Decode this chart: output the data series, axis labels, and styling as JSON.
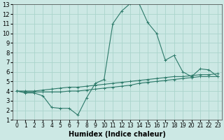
{
  "xlabel": "Humidex (Indice chaleur)",
  "background_color": "#cce8e4",
  "grid_color": "#aad4cc",
  "line_color": "#2d7a6a",
  "xlim": [
    -0.5,
    23.5
  ],
  "ylim": [
    1,
    13
  ],
  "xticks": [
    0,
    1,
    2,
    3,
    4,
    5,
    6,
    7,
    8,
    9,
    10,
    11,
    12,
    13,
    14,
    15,
    16,
    17,
    18,
    19,
    20,
    21,
    22,
    23
  ],
  "yticks": [
    1,
    2,
    3,
    4,
    5,
    6,
    7,
    8,
    9,
    10,
    11,
    12,
    13
  ],
  "series": [
    {
      "x": [
        0,
        1,
        2,
        3,
        4,
        5,
        6,
        7,
        8,
        9,
        10,
        11,
        12,
        13,
        14,
        15,
        16,
        17,
        18,
        19,
        20,
        21,
        22,
        23
      ],
      "y": [
        4.0,
        3.8,
        3.8,
        3.5,
        2.3,
        2.2,
        2.2,
        1.5,
        3.3,
        4.8,
        5.2,
        11.0,
        12.3,
        13.1,
        13.1,
        11.1,
        10.0,
        7.2,
        7.7,
        6.0,
        5.5,
        6.3,
        6.2,
        5.5
      ]
    },
    {
      "x": [
        0,
        1,
        2,
        3,
        4,
        5,
        6,
        7,
        8,
        9,
        10,
        11,
        12,
        13,
        14,
        15,
        16,
        17,
        18,
        19,
        20,
        21,
        22,
        23
      ],
      "y": [
        4.0,
        4.0,
        4.0,
        4.1,
        4.2,
        4.3,
        4.4,
        4.4,
        4.5,
        4.6,
        4.7,
        4.8,
        4.9,
        5.0,
        5.1,
        5.2,
        5.3,
        5.4,
        5.5,
        5.5,
        5.6,
        5.7,
        5.7,
        5.8
      ]
    },
    {
      "x": [
        0,
        1,
        2,
        3,
        4,
        5,
        6,
        7,
        8,
        9,
        10,
        11,
        12,
        13,
        14,
        15,
        16,
        17,
        18,
        19,
        20,
        21,
        22,
        23
      ],
      "y": [
        4.0,
        3.9,
        3.9,
        3.9,
        3.9,
        3.9,
        4.0,
        4.0,
        4.1,
        4.2,
        4.3,
        4.4,
        4.5,
        4.6,
        4.8,
        4.9,
        5.0,
        5.1,
        5.2,
        5.3,
        5.4,
        5.5,
        5.5,
        5.5
      ]
    }
  ],
  "xlabel_fontsize": 7,
  "tick_fontsize_x": 5.5,
  "tick_fontsize_y": 6
}
